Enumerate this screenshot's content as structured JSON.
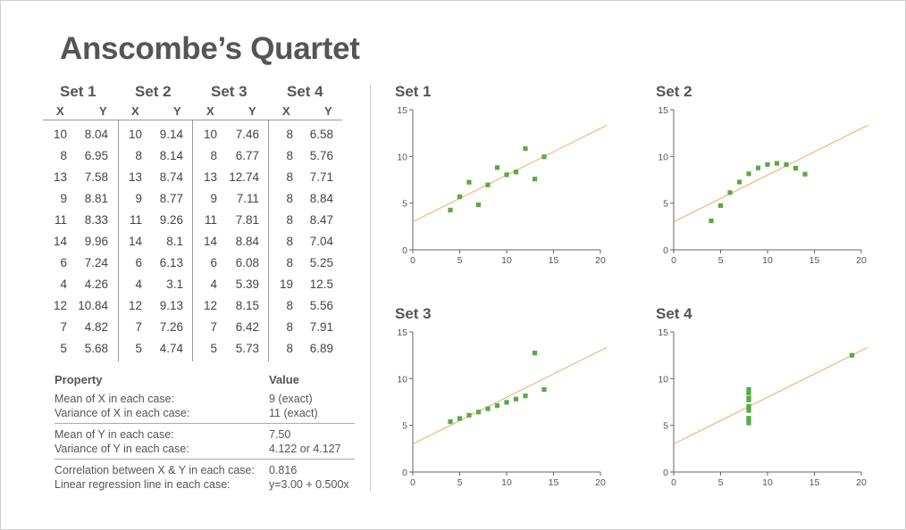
{
  "title": "Anscombe’s Quartet",
  "colors": {
    "point": "#5aaa46",
    "regression": "#f0a868",
    "axis": "#666666",
    "text": "#555555"
  },
  "table": {
    "sets": [
      "Set 1",
      "Set 2",
      "Set 3",
      "Set 4"
    ],
    "x_label": "X",
    "y_label": "Y",
    "rows": [
      [
        "10",
        "8.04",
        "10",
        "9.14",
        "10",
        "7.46",
        "8",
        "6.58"
      ],
      [
        "8",
        "6.95",
        "8",
        "8.14",
        "8",
        "6.77",
        "8",
        "5.76"
      ],
      [
        "13",
        "7.58",
        "13",
        "8.74",
        "13",
        "12.74",
        "8",
        "7.71"
      ],
      [
        "9",
        "8.81",
        "9",
        "8.77",
        "9",
        "7.11",
        "8",
        "8.84"
      ],
      [
        "11",
        "8.33",
        "11",
        "9.26",
        "11",
        "7.81",
        "8",
        "8.47"
      ],
      [
        "14",
        "9.96",
        "14",
        "8.1",
        "14",
        "8.84",
        "8",
        "7.04"
      ],
      [
        "6",
        "7.24",
        "6",
        "6.13",
        "6",
        "6.08",
        "8",
        "5.25"
      ],
      [
        "4",
        "4.26",
        "4",
        "3.1",
        "4",
        "5.39",
        "19",
        "12.5"
      ],
      [
        "12",
        "10.84",
        "12",
        "9.13",
        "12",
        "8.15",
        "8",
        "5.56"
      ],
      [
        "7",
        "4.82",
        "7",
        "7.26",
        "7",
        "6.42",
        "8",
        "7.91"
      ],
      [
        "5",
        "5.68",
        "5",
        "4.74",
        "5",
        "5.73",
        "8",
        "6.89"
      ]
    ]
  },
  "properties": {
    "header_property": "Property",
    "header_value": "Value",
    "groups": [
      [
        {
          "label": "Mean of X in each case:",
          "value": "9 (exact)"
        },
        {
          "label": "Variance of X in each case:",
          "value": "11 (exact)"
        }
      ],
      [
        {
          "label": "Mean of Y in each case:",
          "value": "7.50"
        },
        {
          "label": "Variance of Y in each case:",
          "value": "4.122 or 4.127"
        }
      ],
      [
        {
          "label": "Correlation between X & Y in each case:",
          "value": "0.816"
        },
        {
          "label": "Linear regression line in each case:",
          "value": "y=3.00 + 0.500x"
        }
      ]
    ]
  },
  "chart_data": [
    {
      "type": "scatter",
      "title": "Set 1",
      "xlim": [
        0,
        20
      ],
      "ylim": [
        0,
        15
      ],
      "xticks": [
        0,
        5,
        10,
        15,
        20
      ],
      "yticks": [
        0,
        5,
        10,
        15
      ],
      "regression": {
        "intercept": 3.0,
        "slope": 0.5
      },
      "points": [
        [
          10,
          8.04
        ],
        [
          8,
          6.95
        ],
        [
          13,
          7.58
        ],
        [
          9,
          8.81
        ],
        [
          11,
          8.33
        ],
        [
          14,
          9.96
        ],
        [
          6,
          7.24
        ],
        [
          4,
          4.26
        ],
        [
          12,
          10.84
        ],
        [
          7,
          4.82
        ],
        [
          5,
          5.68
        ]
      ]
    },
    {
      "type": "scatter",
      "title": "Set 2",
      "xlim": [
        0,
        20
      ],
      "ylim": [
        0,
        15
      ],
      "xticks": [
        0,
        5,
        10,
        15,
        20
      ],
      "yticks": [
        0,
        5,
        10,
        15
      ],
      "regression": {
        "intercept": 3.0,
        "slope": 0.5
      },
      "points": [
        [
          10,
          9.14
        ],
        [
          8,
          8.14
        ],
        [
          13,
          8.74
        ],
        [
          9,
          8.77
        ],
        [
          11,
          9.26
        ],
        [
          14,
          8.1
        ],
        [
          6,
          6.13
        ],
        [
          4,
          3.1
        ],
        [
          12,
          9.13
        ],
        [
          7,
          7.26
        ],
        [
          5,
          4.74
        ]
      ]
    },
    {
      "type": "scatter",
      "title": "Set 3",
      "xlim": [
        0,
        20
      ],
      "ylim": [
        0,
        15
      ],
      "xticks": [
        0,
        5,
        10,
        15,
        20
      ],
      "yticks": [
        0,
        5,
        10,
        15
      ],
      "regression": {
        "intercept": 3.0,
        "slope": 0.5
      },
      "points": [
        [
          10,
          7.46
        ],
        [
          8,
          6.77
        ],
        [
          13,
          12.74
        ],
        [
          9,
          7.11
        ],
        [
          11,
          7.81
        ],
        [
          14,
          8.84
        ],
        [
          6,
          6.08
        ],
        [
          4,
          5.39
        ],
        [
          12,
          8.15
        ],
        [
          7,
          6.42
        ],
        [
          5,
          5.73
        ]
      ]
    },
    {
      "type": "scatter",
      "title": "Set 4",
      "xlim": [
        0,
        20
      ],
      "ylim": [
        0,
        15
      ],
      "xticks": [
        0,
        5,
        10,
        15,
        20
      ],
      "yticks": [
        0,
        5,
        10,
        15
      ],
      "regression": {
        "intercept": 3.0,
        "slope": 0.5
      },
      "points": [
        [
          8,
          6.58
        ],
        [
          8,
          5.76
        ],
        [
          8,
          7.71
        ],
        [
          8,
          8.84
        ],
        [
          8,
          8.47
        ],
        [
          8,
          7.04
        ],
        [
          8,
          5.25
        ],
        [
          19,
          12.5
        ],
        [
          8,
          5.56
        ],
        [
          8,
          7.91
        ],
        [
          8,
          6.89
        ]
      ]
    }
  ]
}
